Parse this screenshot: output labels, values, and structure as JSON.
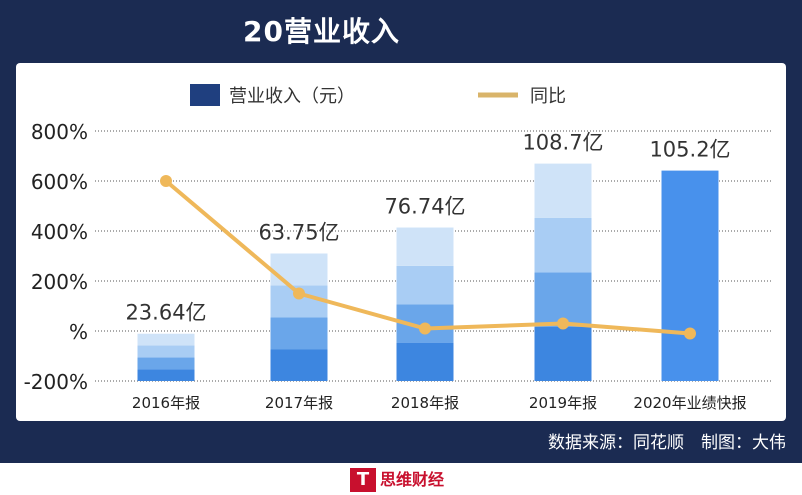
{
  "header": {
    "title": "20营业收入"
  },
  "footer": {
    "source": "数据来源：同花顺　制图：大伟"
  },
  "logo": {
    "text": "思维财经",
    "mark": "T"
  },
  "colors": {
    "frame": "#1b2b52",
    "legend_bar": "#1f3f7f",
    "legend_line": "#d9b46a",
    "line": "#efb85a",
    "bar_dark": "#3d86e0",
    "bar_mid": "#6aa6ea",
    "bar_light": "#a9cdf4",
    "bar_lighter": "#cfe3f8",
    "bar_2020": "#4891ec"
  },
  "chart_data": {
    "type": "bar",
    "categories": [
      "2016年报",
      "2017年报",
      "2018年报",
      "2019年报",
      "2020年业绩快报"
    ],
    "series": [
      {
        "name": "营业收入（元）",
        "type": "bar",
        "values": [
          23.64,
          63.75,
          76.74,
          108.7,
          105.2
        ],
        "labels": [
          "23.64亿",
          "63.75亿",
          "76.74亿",
          "108.7亿",
          "105.2亿"
        ]
      },
      {
        "name": "同比",
        "type": "line",
        "values": [
          600,
          150,
          10,
          30,
          -10
        ]
      }
    ],
    "y_ticks": [
      "800%",
      "600%",
      "400%",
      "200%",
      "%",
      "-200%"
    ],
    "ylim": [
      -200,
      800
    ],
    "grid": "dotted",
    "legend": "top"
  }
}
